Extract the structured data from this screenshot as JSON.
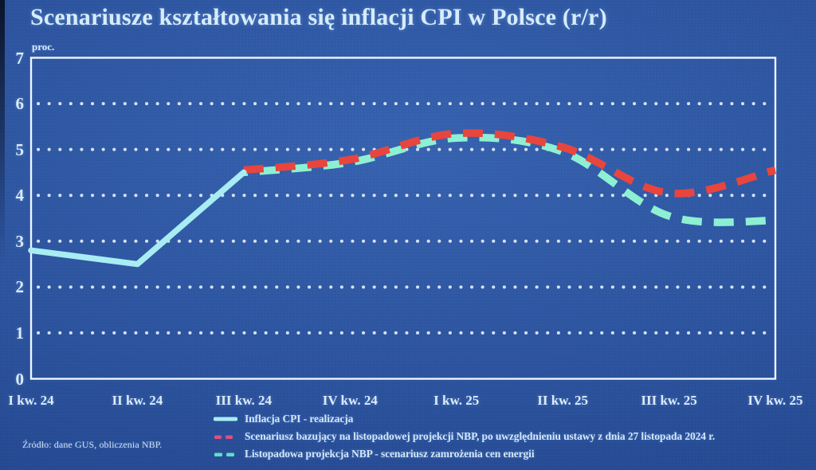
{
  "title": "Scenariusze kształtowania się inflacji CPI w Polsce (r/r)",
  "y_axis": {
    "unit": "proc.",
    "ticks": [
      7,
      6,
      5,
      4,
      3,
      2,
      1,
      0
    ]
  },
  "source": "Źródło: dane GUS, obliczenia NBP.",
  "colors": {
    "background": "#2c57a7",
    "frame": "#eef6fd",
    "grid_dots": "#e3eefc",
    "axis_text": "#dcebfa",
    "title_text": "#d7ecfb"
  },
  "legend": {
    "items": [
      {
        "label": "Inflacja CPI - realizacja",
        "style": "solid",
        "color": "#a7edf3"
      },
      {
        "label": "Scenariusz bazujący na listopadowej projekcji NBP, po uwzględnieniu ustawy z dnia 27 listopada 2024 r.",
        "style": "dashed",
        "color": "#dd4e82"
      },
      {
        "label": "Listopadowa projekcja NBP - scenariusz zamrożenia cen energii",
        "style": "dashed",
        "color": "#5fdcd0"
      }
    ]
  },
  "chart_data": {
    "type": "line",
    "categories": [
      "I kw. 24",
      "II kw. 24",
      "III kw. 24",
      "IV kw. 24",
      "I kw. 25",
      "II kw. 25",
      "III kw. 25",
      "IV kw. 25"
    ],
    "series": [
      {
        "name": "Inflacja CPI - realizacja",
        "line": "solid",
        "color": "#a7edf3",
        "values": [
          2.8,
          2.5,
          4.5,
          null,
          null,
          null,
          null,
          null
        ]
      },
      {
        "name": "Scenariusz bazujący na listopadowej projekcji NBP, po uwzględnieniu ustawy z dnia 27 listopada 2024 r.",
        "line": "dashed",
        "color": "#e8453e",
        "values": [
          null,
          null,
          4.55,
          4.78,
          5.35,
          5.05,
          4.05,
          4.55
        ]
      },
      {
        "name": "Listopadowa projekcja NBP - scenariusz zamrożenia cen energii",
        "line": "dashed",
        "color": "#8df0d2",
        "values": [
          null,
          null,
          4.5,
          4.72,
          5.25,
          4.95,
          3.55,
          3.45
        ]
      }
    ],
    "title": "Scenariusze kształtowania się inflacji CPI w Polsce (r/r)",
    "xlabel": "",
    "ylabel": "proc.",
    "ylim": [
      0,
      7
    ],
    "grid": "horizontal-dotted",
    "legend_position": "bottom"
  }
}
